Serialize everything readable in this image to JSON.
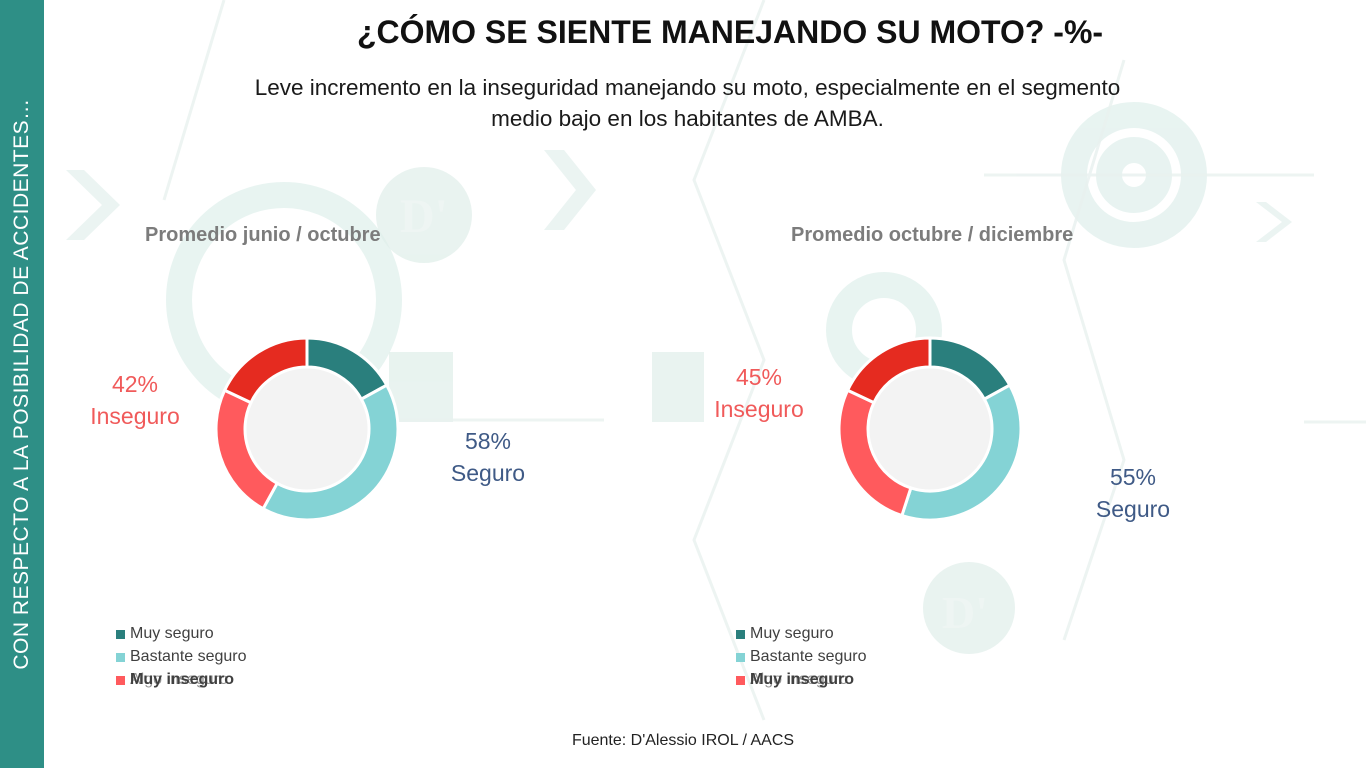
{
  "sidebar": {
    "label": "CON RESPECTO A LA POSIBILIDAD DE ACCIDENTES…"
  },
  "title": "¿CÓMO SE SIENTE MANEJANDO SU MOTO? -%-",
  "subtitle_line1": "Leve incremento en la inseguridad manejando su moto, especialmente en el segmento",
  "subtitle_line2": "medio bajo en los habitantes de AMBA.",
  "source": "Fuente: D'Alessio IROL / AACS",
  "colors": {
    "muy_seguro": "#2a7f7d",
    "bastante_seguro": "#84d3d5",
    "algo_inseguro": "#ff5a5d",
    "muy_inseguro": "#e52b20",
    "accent": "#2e8f86"
  },
  "chart_data": [
    {
      "type": "pie",
      "title": "Promedio junio / octubre",
      "series_labels": [
        "Muy seguro",
        "Bastante seguro",
        "Algo inseguro",
        "Muy inseguro"
      ],
      "values": [
        17,
        41,
        24,
        18
      ],
      "callouts": {
        "inseguro_pct": "42%",
        "inseguro_label": "Inseguro",
        "seguro_pct": "58%",
        "seguro_label": "Seguro"
      }
    },
    {
      "type": "pie",
      "title": "Promedio octubre / diciembre",
      "series_labels": [
        "Muy seguro",
        "Bastante seguro",
        "Algo inseguro",
        "Muy inseguro"
      ],
      "values": [
        17,
        38,
        27,
        18
      ],
      "callouts": {
        "inseguro_pct": "45%",
        "inseguro_label": "Inseguro",
        "seguro_pct": "55%",
        "seguro_label": "Seguro"
      }
    }
  ]
}
